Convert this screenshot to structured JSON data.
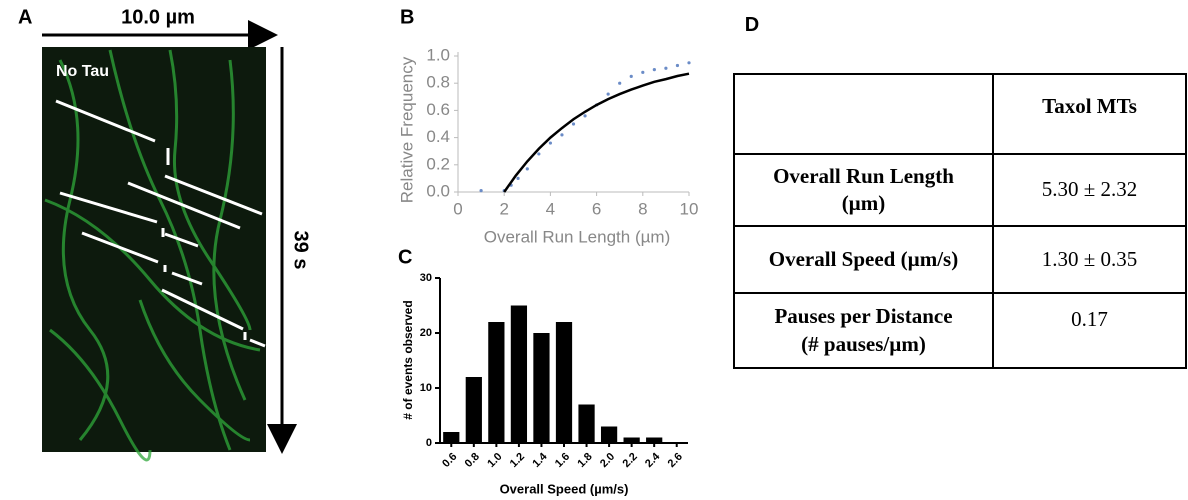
{
  "panels": {
    "a": {
      "label": "A",
      "scale_bar": "10.0 µm",
      "time_bar": "39 s",
      "condition": "No Tau"
    }
  },
  "chart_data": [
    {
      "type": "line",
      "panel": "B",
      "y_label": "Relative Frequency",
      "x_label": "Overall Run Length (µm)",
      "xlim": [
        0,
        10
      ],
      "xticks": [
        0,
        2,
        4,
        6,
        8,
        10
      ],
      "ylim": [
        0,
        1
      ],
      "yticks": [
        {
          "value": 0,
          "label": "0.0"
        },
        0.2,
        0.4,
        0.6,
        0.8,
        {
          "value": 1,
          "label": "1.0"
        }
      ],
      "series": [
        {
          "mode": "markers",
          "color": "#6b8cc7",
          "x": [
            1,
            2,
            2.3,
            2.6,
            3,
            3.5,
            4,
            4.5,
            5,
            5.5,
            6,
            6.5,
            7,
            7.5,
            8,
            8.5,
            9,
            9.5,
            10
          ],
          "values": [
            0.01,
            0.01,
            0.05,
            0.1,
            0.17,
            0.28,
            0.36,
            0.42,
            0.5,
            0.56,
            0.64,
            0.72,
            0.8,
            0.85,
            0.88,
            0.9,
            0.91,
            0.93,
            0.95
          ]
        },
        {
          "mode": "line",
          "color": "#000000",
          "x": [
            2,
            2.5,
            3,
            3.5,
            4,
            4.5,
            5,
            5.5,
            6,
            6.5,
            7,
            7.5,
            8,
            8.5,
            9,
            9.5,
            10
          ],
          "values": [
            0,
            0.12,
            0.225,
            0.318,
            0.4,
            0.47,
            0.535,
            0.59,
            0.64,
            0.683,
            0.72,
            0.753,
            0.783,
            0.81,
            0.83,
            0.853,
            0.87
          ]
        }
      ]
    },
    {
      "type": "bar",
      "panel": "C",
      "y_label": "# of events observed",
      "x_label": "Overall Speed (µm/s)",
      "categories": [
        "0.6",
        "0.8",
        "1.0",
        "1.2",
        "1.4",
        "1.6",
        "1.8",
        "2.0",
        "2.2",
        "2.4",
        "2.6"
      ],
      "values": [
        2,
        12,
        22,
        25,
        20,
        22,
        7,
        3,
        1,
        1,
        0
      ],
      "color": "#000000",
      "ylim": [
        0,
        30
      ],
      "yticks": [
        0,
        10,
        20,
        30
      ]
    }
  ],
  "table": {
    "label": "D",
    "column_header": "Taxol MTs",
    "rows": [
      [
        "Overall Run Length\n(µm)",
        "5.30 ± 2.32"
      ],
      [
        "Overall Speed (µm/s)",
        "1.30 ± 0.35"
      ],
      [
        "Pauses per Distance\n(# pauses/µm)",
        "0.17"
      ]
    ]
  }
}
